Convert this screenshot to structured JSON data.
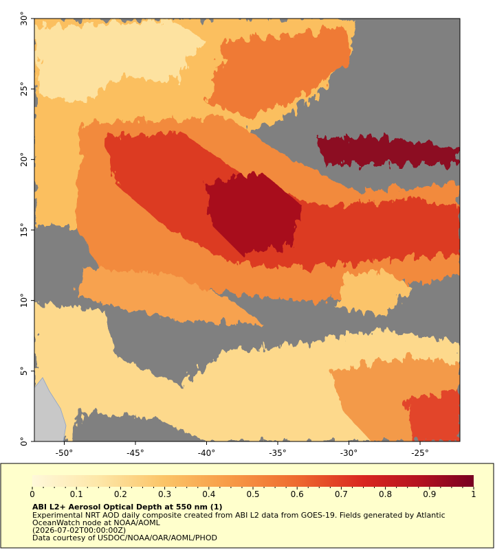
{
  "map": {
    "xlim": [
      -52.1,
      -22.2
    ],
    "ylim": [
      0,
      30
    ],
    "xticks": [
      {
        "value": -50,
        "label": "-50°"
      },
      {
        "value": -45,
        "label": "-45°"
      },
      {
        "value": -40,
        "label": "-40°"
      },
      {
        "value": -35,
        "label": "-35°"
      },
      {
        "value": -30,
        "label": "-30°"
      },
      {
        "value": -25,
        "label": "-25°"
      }
    ],
    "yticks": [
      {
        "value": 0,
        "label": "0°"
      },
      {
        "value": 5,
        "label": "5°"
      },
      {
        "value": 10,
        "label": "10°"
      },
      {
        "value": 15,
        "label": "15°"
      },
      {
        "value": 20,
        "label": "20°"
      },
      {
        "value": 25,
        "label": "25°"
      },
      {
        "value": 30,
        "label": "30°"
      }
    ]
  },
  "colorbar": {
    "lim": [
      0,
      1
    ],
    "ticks": [
      0,
      0.1,
      0.2,
      0.3,
      0.4,
      0.5,
      0.6,
      0.7,
      0.8,
      0.9,
      1
    ]
  },
  "caption": {
    "title": "ABI L2+ Aerosol Optical Depth at 550 nm (1)",
    "lines": [
      "Experimental NRT AOD daily composite created from ABI L2 data from GOES-19. Fields generated by Atlantic",
      "OceanWatch node at NOAA/AOML",
      "(2026-07-02T00:00:00Z)",
      "Data courtesy of USDOC/NOAA/OAR/AOML/PHOD"
    ]
  }
}
